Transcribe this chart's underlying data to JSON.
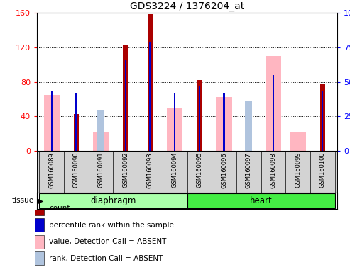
{
  "title": "GDS3224 / 1376204_at",
  "samples": [
    "GSM160089",
    "GSM160090",
    "GSM160091",
    "GSM160092",
    "GSM160093",
    "GSM160094",
    "GSM160095",
    "GSM160096",
    "GSM160097",
    "GSM160098",
    "GSM160099",
    "GSM160100"
  ],
  "groups": [
    {
      "label": "diaphragm",
      "indices": [
        0,
        1,
        2,
        3,
        4,
        5
      ],
      "color": "#AAFFAA"
    },
    {
      "label": "heart",
      "indices": [
        6,
        7,
        8,
        9,
        10,
        11
      ],
      "color": "#44EE44"
    }
  ],
  "count": [
    0,
    43,
    0,
    122,
    158,
    0,
    82,
    0,
    0,
    0,
    0,
    78
  ],
  "percentile_rank": [
    43,
    42,
    0,
    66,
    79,
    42,
    47,
    42,
    0,
    55,
    0,
    43
  ],
  "value_absent": [
    65,
    0,
    22,
    0,
    0,
    50,
    0,
    62,
    0,
    110,
    22,
    0
  ],
  "rank_absent_pct": [
    0,
    0,
    30,
    0,
    0,
    0,
    0,
    0,
    36,
    0,
    0,
    0
  ],
  "ylim_left": [
    0,
    160
  ],
  "ylim_right": [
    0,
    100
  ],
  "yticks_left": [
    0,
    40,
    80,
    120,
    160
  ],
  "yticks_right": [
    0,
    25,
    50,
    75,
    100
  ],
  "color_count": "#AA0000",
  "color_rank": "#0000CC",
  "color_value_absent": "#FFB6C1",
  "color_rank_absent": "#B0C4DE",
  "legend_items": [
    {
      "label": "count",
      "color": "#AA0000"
    },
    {
      "label": "percentile rank within the sample",
      "color": "#0000CC"
    },
    {
      "label": "value, Detection Call = ABSENT",
      "color": "#FFB6C1"
    },
    {
      "label": "rank, Detection Call = ABSENT",
      "color": "#B0C4DE"
    }
  ]
}
